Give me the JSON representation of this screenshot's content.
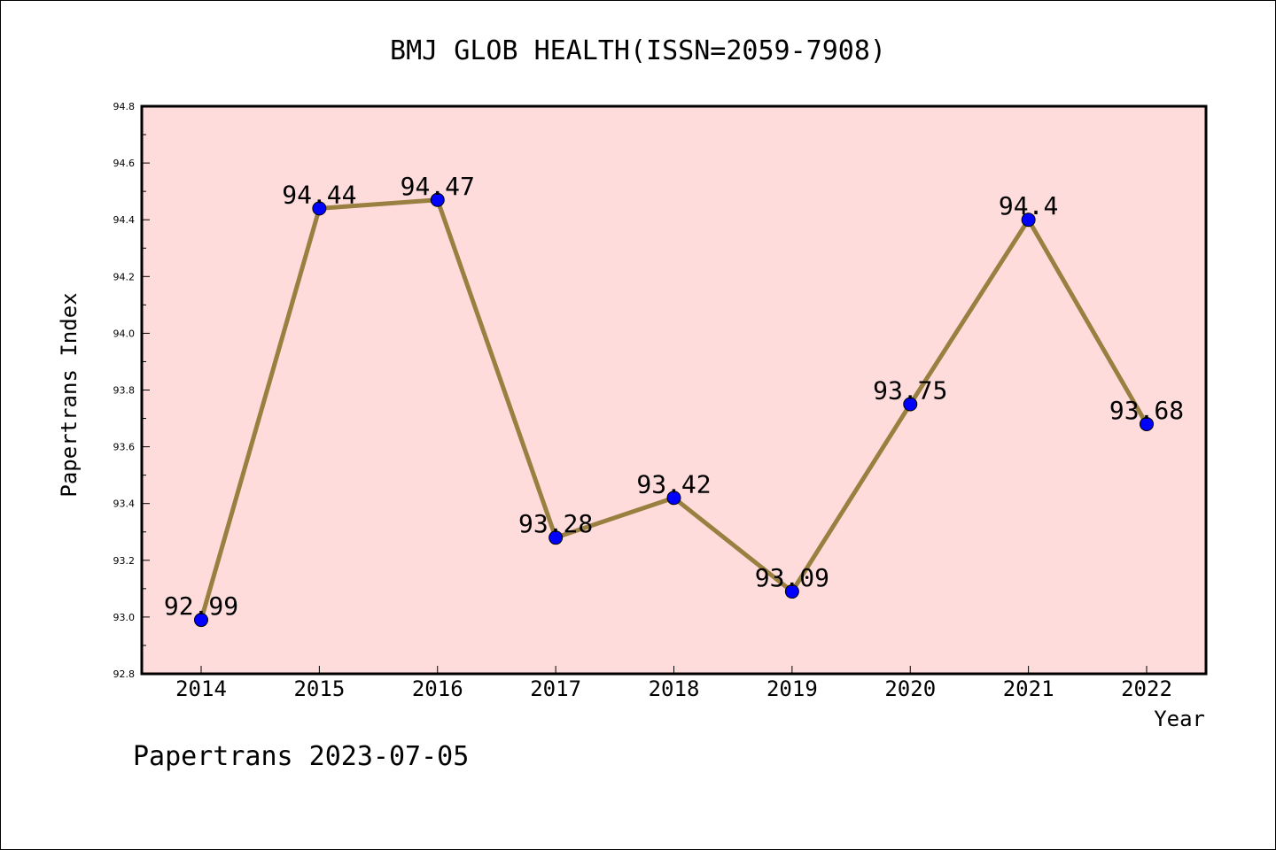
{
  "chart_data": {
    "type": "line",
    "title": "BMJ GLOB HEALTH(ISSN=2059-7908)",
    "xlabel": "Year",
    "ylabel": "Papertrans Index",
    "categories": [
      "2014",
      "2015",
      "2016",
      "2017",
      "2018",
      "2019",
      "2020",
      "2021",
      "2022"
    ],
    "values": [
      92.99,
      94.44,
      94.47,
      93.28,
      93.42,
      93.09,
      93.75,
      94.4,
      93.68
    ],
    "data_labels": [
      "92.99",
      "94.44",
      "94.47",
      "93.28",
      "93.42",
      "93.09",
      "93.75",
      "94.4",
      "93.68"
    ],
    "ylim": [
      92.8,
      94.8
    ],
    "yticks": [
      "92.8",
      "93.0",
      "93.2",
      "93.4",
      "93.6",
      "93.8",
      "94.0",
      "94.2",
      "94.4",
      "94.6",
      "94.8"
    ],
    "grid": false,
    "colors": {
      "plot_background": "#ffdcdc",
      "line": "#9a8040",
      "marker": "#0000ff"
    }
  },
  "footer": {
    "watermark": "Papertrans 2023-07-05"
  }
}
